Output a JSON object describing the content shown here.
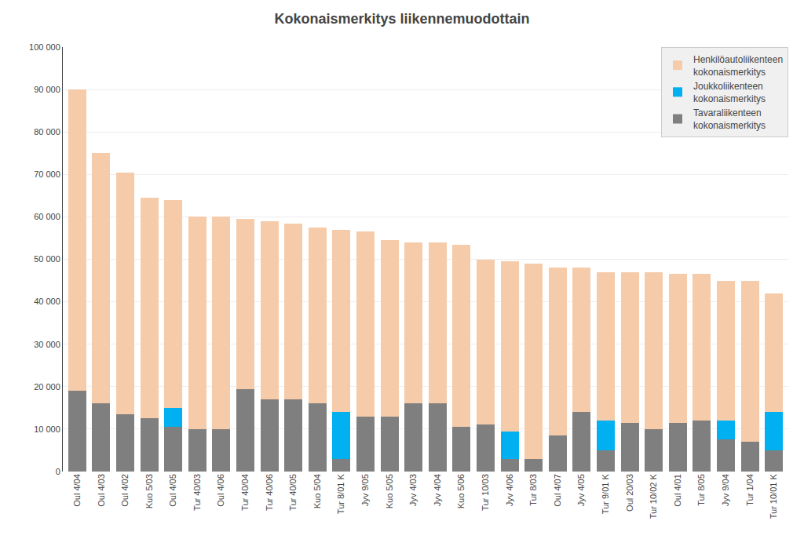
{
  "chart_data": {
    "type": "bar",
    "stacked": true,
    "title": "Kokonaismerkitys liikennemuodottain",
    "categories": [
      "Oul 4/04",
      "Oul 4/03",
      "Oul 4/02",
      "Kuo 5/03",
      "Oul 4/05",
      "Tur 40/03",
      "Oul 4/06",
      "Tur 40/04",
      "Tur 40/06",
      "Tur 40/05",
      "Kuo 5/04",
      "Tur 8/01 K",
      "Jyv 9/05",
      "Kuo 5/05",
      "Jyv 4/03",
      "Jyv 4/04",
      "Kuo 5/06",
      "Tur 10/03",
      "Jyv 4/06",
      "Tur 8/03",
      "Oul 4/07",
      "Jyv 4/05",
      "Tur 9/01 K",
      "Oul 20/03",
      "Tur 10/02 K",
      "Oul 4/01",
      "Tur 8/05",
      "Jyv 9/04",
      "Tur 1/04",
      "Tur 10/01 K"
    ],
    "series": [
      {
        "name": "Tavaraliikenteen\nkokonaismerkitys",
        "color": "#7f7f7f",
        "values": [
          19000,
          16000,
          13500,
          12500,
          10500,
          10000,
          10000,
          19500,
          17000,
          17000,
          16000,
          3000,
          13000,
          13000,
          16000,
          16000,
          10500,
          11000,
          3000,
          3000,
          8500,
          14000,
          5000,
          11500,
          10000,
          11500,
          12000,
          7500,
          7000,
          5000
        ]
      },
      {
        "name": "Joukkoliikenteen\nkokonaismerkitys",
        "color": "#00b0f0",
        "values": [
          0,
          0,
          0,
          0,
          4500,
          0,
          0,
          0,
          0,
          0,
          0,
          11000,
          0,
          0,
          0,
          0,
          0,
          0,
          6500,
          0,
          0,
          0,
          7000,
          0,
          0,
          0,
          0,
          4500,
          0,
          9000
        ]
      },
      {
        "name": "Henkilöautoliikenteen\nkokonaismerkitys",
        "color": "#f5cbaa",
        "values": [
          71000,
          59000,
          57000,
          52000,
          49000,
          50000,
          50000,
          40000,
          42000,
          41500,
          41500,
          43000,
          43500,
          41500,
          38000,
          38000,
          43000,
          39000,
          40000,
          46000,
          39500,
          34000,
          35000,
          35500,
          37000,
          35000,
          34500,
          33000,
          38000,
          28000
        ]
      }
    ],
    "ylim": [
      0,
      100000
    ],
    "yticks": [
      0,
      {
        "value": 10000,
        "label": "10 000"
      },
      {
        "value": 20000,
        "label": "20 000"
      },
      {
        "value": 30000,
        "label": "30 000"
      },
      {
        "value": 40000,
        "label": "40 000"
      },
      {
        "value": 50000,
        "label": "50 000"
      },
      {
        "value": 60000,
        "label": "60 000"
      },
      {
        "value": 70000,
        "label": "70 000"
      },
      {
        "value": 80000,
        "label": "80 000"
      },
      {
        "value": 90000,
        "label": "90 000"
      },
      {
        "value": 100000,
        "label": "100 000"
      }
    ],
    "grid": true,
    "legend": "upper right"
  }
}
